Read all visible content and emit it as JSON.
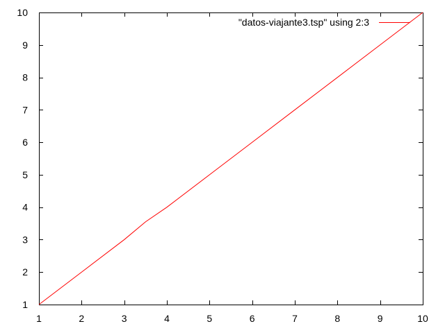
{
  "chart_data": {
    "type": "line",
    "title": "",
    "xlabel": "",
    "ylabel": "",
    "xlim": [
      1,
      10
    ],
    "ylim": [
      1,
      10
    ],
    "x_ticks": [
      1,
      2,
      3,
      4,
      5,
      6,
      7,
      8,
      9,
      10
    ],
    "y_ticks": [
      1,
      2,
      3,
      4,
      5,
      6,
      7,
      8,
      9,
      10
    ],
    "grid": false,
    "legend_position": "top-right",
    "series": [
      {
        "name": "\"datos-viajante3.tsp\" using 2:3",
        "color": "#ff0000",
        "x": [
          1,
          2,
          3,
          3.5,
          4,
          5,
          6,
          7,
          8,
          9,
          10
        ],
        "y": [
          1,
          2,
          3,
          3.55,
          4,
          5,
          6,
          7,
          8,
          9,
          10
        ]
      }
    ]
  }
}
